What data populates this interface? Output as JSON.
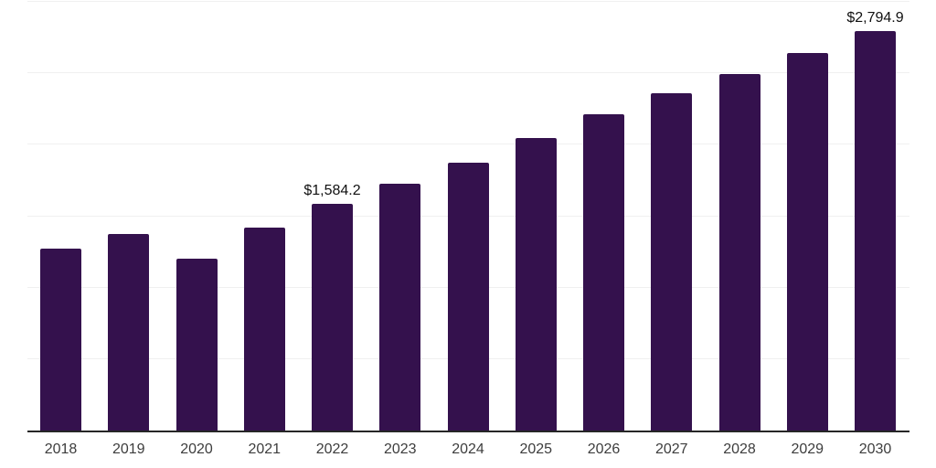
{
  "chart_data": {
    "type": "bar",
    "title": "",
    "xlabel": "",
    "ylabel": "",
    "categories": [
      "2018",
      "2019",
      "2020",
      "2021",
      "2022",
      "2023",
      "2024",
      "2025",
      "2026",
      "2027",
      "2028",
      "2029",
      "2030"
    ],
    "values": [
      1270,
      1375,
      1200,
      1420,
      1584.2,
      1730,
      1875,
      2045,
      2215,
      2360,
      2495,
      2640,
      2794.9
    ],
    "annotations": [
      {
        "category": "2022",
        "text": "$1,584.2"
      },
      {
        "category": "2030",
        "text": "$2,794.9"
      }
    ],
    "ylim": [
      0,
      3000
    ],
    "gridline_interval": 500,
    "grid": "horizontal-only, no y-axis tick labels",
    "legend": "none",
    "colors": {
      "bar": "#34114D",
      "axis_line": "#262626",
      "gridline": "#f0f0f0",
      "data_label": "#111111",
      "tick_label": "#3d3d3d",
      "background": "#ffffff"
    }
  }
}
